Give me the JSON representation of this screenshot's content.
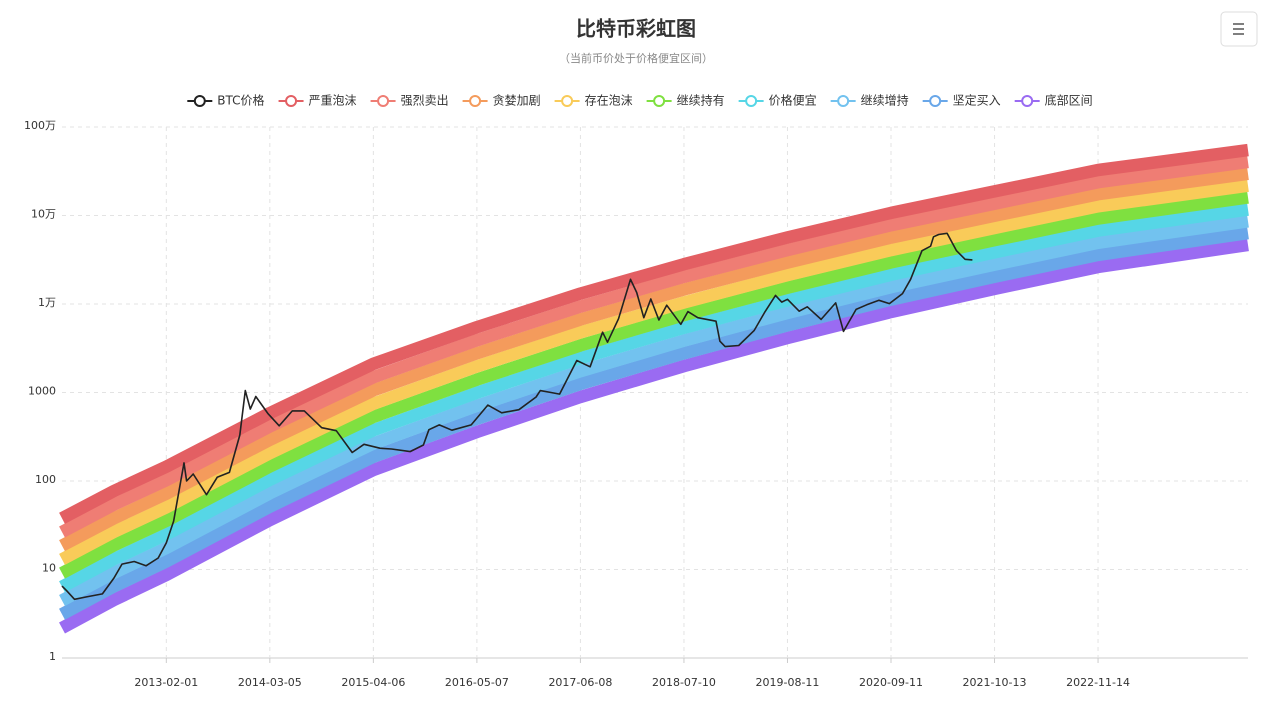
{
  "chart_data": {
    "type": "line",
    "title": "比特币彩虹图",
    "subtitle": "（当前币价处于价格便宜区间）",
    "y_scale": "log",
    "grid": true,
    "legend": "top",
    "xlim": [
      "2011-12-29",
      "2024-06-11"
    ],
    "xticks": [
      "2013-02-01",
      "2014-03-05",
      "2015-04-06",
      "2016-05-07",
      "2017-06-08",
      "2018-07-10",
      "2019-08-11",
      "2020-09-11",
      "2021-10-13",
      "2022-11-14"
    ],
    "ylim": [
      1,
      1000000
    ],
    "yticks": [
      1,
      10,
      100,
      1000,
      {
        "value": 10000,
        "label": "1万"
      },
      {
        "value": 100000,
        "label": "10万"
      },
      {
        "value": 1000000,
        "label": "100万"
      }
    ],
    "x": [
      "2011-12-29",
      "2012-07-15",
      "2013-02-01",
      "2014-03-05",
      "2015-04-06",
      "2016-05-07",
      "2017-06-08",
      "2018-07-10",
      "2019-08-11",
      "2020-09-11",
      "2021-10-13",
      "2022-11-14",
      "2024-06-11"
    ],
    "series": [
      {
        "name": "BTC价格",
        "color": "#222222",
        "x": [
          "2011-12-29",
          "2012-01-15",
          "2012-02-15",
          "2012-04-01",
          "2012-06-01",
          "2012-07-15",
          "2012-08-15",
          "2012-10-01",
          "2012-11-15",
          "2013-01-01",
          "2013-02-01",
          "2013-03-01",
          "2013-04-10",
          "2013-04-20",
          "2013-05-15",
          "2013-07-05",
          "2013-08-15",
          "2013-10-01",
          "2013-11-10",
          "2013-12-01",
          "2013-12-20",
          "2014-01-10",
          "2014-02-25",
          "2014-04-10",
          "2014-05-30",
          "2014-07-15",
          "2014-09-20",
          "2014-11-15",
          "2015-01-15",
          "2015-03-01",
          "2015-05-01",
          "2015-06-15",
          "2015-08-25",
          "2015-10-15",
          "2015-11-05",
          "2015-12-15",
          "2016-02-01",
          "2016-04-15",
          "2016-06-18",
          "2016-08-10",
          "2016-10-15",
          "2016-12-20",
          "2017-01-05",
          "2017-02-15",
          "2017-03-20",
          "2017-05-25",
          "2017-07-15",
          "2017-09-01",
          "2017-09-20",
          "2017-11-01",
          "2017-12-17",
          "2018-01-10",
          "2018-02-06",
          "2018-03-05",
          "2018-04-05",
          "2018-05-05",
          "2018-06-28",
          "2018-07-25",
          "2018-09-01",
          "2018-11-10",
          "2018-11-25",
          "2018-12-15",
          "2019-02-05",
          "2019-04-05",
          "2019-05-15",
          "2019-06-26",
          "2019-07-20",
          "2019-08-11",
          "2019-09-25",
          "2019-10-26",
          "2019-12-18",
          "2020-02-12",
          "2020-03-13",
          "2020-04-30",
          "2020-06-10",
          "2020-07-27",
          "2020-09-05",
          "2020-10-25",
          "2020-11-25",
          "2021-01-08",
          "2021-02-10",
          "2021-02-21",
          "2021-03-13",
          "2021-04-14",
          "2021-05-20",
          "2021-06-22",
          "2021-07-20"
        ],
        "values": [
          6.5,
          5.8,
          4.6,
          4.9,
          5.3,
          8,
          11.5,
          12.3,
          11,
          13.5,
          20,
          35,
          160,
          100,
          120,
          70,
          110,
          125,
          330,
          1050,
          650,
          900,
          580,
          420,
          620,
          620,
          400,
          370,
          210,
          260,
          235,
          230,
          215,
          255,
          380,
          430,
          375,
          430,
          720,
          590,
          640,
          890,
          1050,
          1000,
          960,
          2300,
          1950,
          4800,
          3700,
          6800,
          19000,
          13500,
          7000,
          11400,
          6600,
          9700,
          5900,
          8200,
          7000,
          6400,
          3800,
          3300,
          3400,
          5000,
          8000,
          12500,
          10500,
          11300,
          8300,
          9300,
          6700,
          10300,
          4900,
          8700,
          9800,
          11000,
          10100,
          13100,
          19000,
          40000,
          45000,
          57500,
          61000,
          63000,
          40000,
          32000,
          31500
        ]
      },
      {
        "name": "严重泡沫",
        "color": "#e35f63",
        "values": [
          37.9,
          77.1,
          145,
          585,
          2110,
          5470,
          13100,
          28200,
          56500,
          107000,
          187000,
          327000,
          548000
        ]
      },
      {
        "name": "强烈卖出",
        "color": "#ef7d74",
        "values": [
          26.5,
          54.1,
          102,
          413,
          1490,
          3890,
          9350,
          20300,
          40700,
          77600,
          136000,
          238000,
          403000
        ]
      },
      {
        "name": "贪婪加剧",
        "color": "#f49b5c",
        "values": [
          18.6,
          37.9,
          71.8,
          292,
          1060,
          2770,
          6680,
          14600,
          29400,
          56200,
          99300,
          174000,
          296000
        ]
      },
      {
        "name": "存在泡沫",
        "color": "#f9cb59",
        "values": [
          13,
          26.6,
          50.5,
          206,
          748,
          1970,
          4780,
          10400,
          21200,
          40700,
          72300,
          127000,
          217000
        ]
      },
      {
        "name": "继续持有",
        "color": "#7fe040",
        "values": [
          9.1,
          18.7,
          35.5,
          146,
          530,
          1400,
          3410,
          7500,
          15300,
          29500,
          52600,
          92500,
          160000
        ]
      },
      {
        "name": "价格便宜",
        "color": "#56d6e6",
        "values": [
          6.37,
          13.1,
          24.9,
          103,
          375,
          995,
          2440,
          5380,
          11000,
          21400,
          38300,
          67500,
          117000
        ]
      },
      {
        "name": "继续增持",
        "color": "#72c2ef",
        "values": [
          4.46,
          9.18,
          17.5,
          72.6,
          265,
          708,
          1740,
          3860,
          7940,
          15500,
          27900,
          49200,
          86100
        ]
      },
      {
        "name": "坚定买入",
        "color": "#69a7e9",
        "values": [
          3.12,
          6.44,
          12.3,
          51.3,
          188,
          504,
          1250,
          2770,
          5730,
          11200,
          20300,
          35900,
          63200
        ]
      },
      {
        "name": "底部区间",
        "color": "#9a6bf2",
        "values": [
          2.18,
          4.52,
          8.67,
          36.2,
          133,
          358,
          889,
          1990,
          4130,
          8130,
          14800,
          26200,
          46500
        ]
      }
    ]
  }
}
